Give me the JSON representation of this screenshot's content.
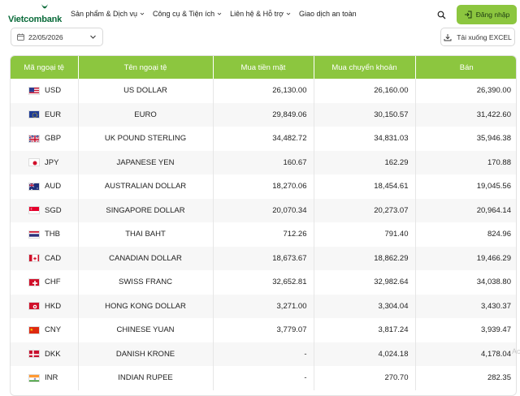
{
  "header": {
    "logo_text": "Vietcombank",
    "nav": [
      "Sản phẩm & Dịch vụ",
      "Công cụ & Tiện ích",
      "Liên hệ & Hỗ trợ",
      "Giao dịch an toàn"
    ],
    "login_label": "Đăng nhập"
  },
  "toolbar": {
    "date_value": "22/05/2026",
    "excel_label": "Tải xuống EXCEL"
  },
  "table": {
    "columns": [
      "Mã ngoại tệ",
      "Tên ngoại tệ",
      "Mua tiền mặt",
      "Mua chuyển khoản",
      "Bán"
    ],
    "rows": [
      {
        "code": "USD",
        "name": "US DOLLAR",
        "cash": "26,130.00",
        "transfer": "26,160.00",
        "sell": "26,390.00",
        "flag": "us-flag-icon"
      },
      {
        "code": "EUR",
        "name": "EURO",
        "cash": "29,849.06",
        "transfer": "30,150.57",
        "sell": "31,422.60",
        "flag": "eu-flag-icon"
      },
      {
        "code": "GBP",
        "name": "UK POUND STERLING",
        "cash": "34,482.72",
        "transfer": "34,831.03",
        "sell": "35,946.38",
        "flag": "gb-flag-icon"
      },
      {
        "code": "JPY",
        "name": "JAPANESE YEN",
        "cash": "160.67",
        "transfer": "162.29",
        "sell": "170.88",
        "flag": "jp-flag-icon"
      },
      {
        "code": "AUD",
        "name": "AUSTRALIAN DOLLAR",
        "cash": "18,270.06",
        "transfer": "18,454.61",
        "sell": "19,045.56",
        "flag": "au-flag-icon"
      },
      {
        "code": "SGD",
        "name": "SINGAPORE DOLLAR",
        "cash": "20,070.34",
        "transfer": "20,273.07",
        "sell": "20,964.14",
        "flag": "sg-flag-icon"
      },
      {
        "code": "THB",
        "name": "THAI BAHT",
        "cash": "712.26",
        "transfer": "791.40",
        "sell": "824.96",
        "flag": "th-flag-icon"
      },
      {
        "code": "CAD",
        "name": "CANADIAN DOLLAR",
        "cash": "18,673.67",
        "transfer": "18,862.29",
        "sell": "19,466.29",
        "flag": "ca-flag-icon"
      },
      {
        "code": "CHF",
        "name": "SWISS FRANC",
        "cash": "32,652.81",
        "transfer": "32,982.64",
        "sell": "34,038.80",
        "flag": "ch-flag-icon"
      },
      {
        "code": "HKD",
        "name": "HONG KONG DOLLAR",
        "cash": "3,271.00",
        "transfer": "3,304.04",
        "sell": "3,430.37",
        "flag": "hk-flag-icon"
      },
      {
        "code": "CNY",
        "name": "CHINESE YUAN",
        "cash": "3,779.07",
        "transfer": "3,817.24",
        "sell": "3,939.47",
        "flag": "cn-flag-icon"
      },
      {
        "code": "DKK",
        "name": "DANISH KRONE",
        "cash": "-",
        "transfer": "4,024.18",
        "sell": "4,178.04",
        "flag": "dk-flag-icon"
      },
      {
        "code": "INR",
        "name": "INDIAN RUPEE",
        "cash": "-",
        "transfer": "270.70",
        "sell": "282.35",
        "flag": "in-flag-icon"
      }
    ]
  },
  "watermark_text": "Ac",
  "colors": {
    "accent": "#8cc63f",
    "brand": "#0a6b3a"
  }
}
